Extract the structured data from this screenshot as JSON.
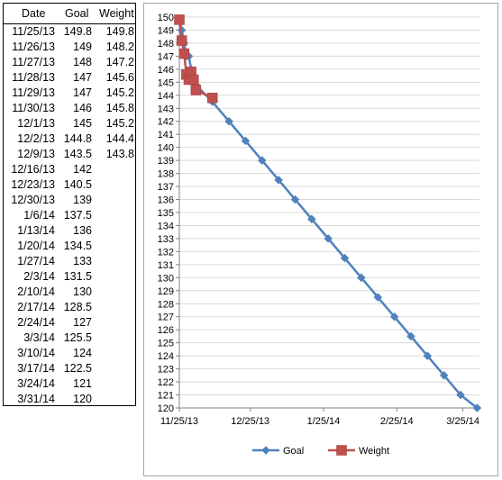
{
  "table": {
    "headers": {
      "date": "Date",
      "goal": "Goal",
      "weight": "Weight"
    },
    "rows": [
      {
        "date": "11/25/13",
        "goal": "149.8",
        "weight": "149.8"
      },
      {
        "date": "11/26/13",
        "goal": "149",
        "weight": "148.2"
      },
      {
        "date": "11/27/13",
        "goal": "148",
        "weight": "147.2"
      },
      {
        "date": "11/28/13",
        "goal": "147",
        "weight": "145.6"
      },
      {
        "date": "11/29/13",
        "goal": "147",
        "weight": "145.2"
      },
      {
        "date": "11/30/13",
        "goal": "146",
        "weight": "145.8"
      },
      {
        "date": "12/1/13",
        "goal": "145",
        "weight": "145.2"
      },
      {
        "date": "12/2/13",
        "goal": "144.8",
        "weight": "144.4"
      },
      {
        "date": "12/9/13",
        "goal": "143.5",
        "weight": "143.8"
      },
      {
        "date": "12/16/13",
        "goal": "142",
        "weight": ""
      },
      {
        "date": "12/23/13",
        "goal": "140.5",
        "weight": ""
      },
      {
        "date": "12/30/13",
        "goal": "139",
        "weight": ""
      },
      {
        "date": "1/6/14",
        "goal": "137.5",
        "weight": ""
      },
      {
        "date": "1/13/14",
        "goal": "136",
        "weight": ""
      },
      {
        "date": "1/20/14",
        "goal": "134.5",
        "weight": ""
      },
      {
        "date": "1/27/14",
        "goal": "133",
        "weight": ""
      },
      {
        "date": "2/3/14",
        "goal": "131.5",
        "weight": ""
      },
      {
        "date": "2/10/14",
        "goal": "130",
        "weight": ""
      },
      {
        "date": "2/17/14",
        "goal": "128.5",
        "weight": ""
      },
      {
        "date": "2/24/14",
        "goal": "127",
        "weight": ""
      },
      {
        "date": "3/3/14",
        "goal": "125.5",
        "weight": ""
      },
      {
        "date": "3/10/14",
        "goal": "124",
        "weight": ""
      },
      {
        "date": "3/17/14",
        "goal": "122.5",
        "weight": ""
      },
      {
        "date": "3/24/14",
        "goal": "121",
        "weight": ""
      },
      {
        "date": "3/31/14",
        "goal": "120",
        "weight": ""
      }
    ]
  },
  "chart_data": {
    "type": "line",
    "title": "",
    "xlabel": "",
    "ylabel": "",
    "ylim": [
      120,
      150
    ],
    "xlim": [
      "2013-11-25",
      "2014-04-01"
    ],
    "x_ticks": [
      "11/25/13",
      "12/25/13",
      "1/25/14",
      "2/25/14",
      "3/25/14"
    ],
    "y_ticks": [
      "120",
      "121",
      "122",
      "123",
      "124",
      "125",
      "126",
      "127",
      "128",
      "129",
      "130",
      "131",
      "132",
      "133",
      "134",
      "135",
      "136",
      "137",
      "138",
      "139",
      "140",
      "141",
      "142",
      "143",
      "144",
      "145",
      "146",
      "147",
      "148",
      "149",
      "150"
    ],
    "grid": "horizontal",
    "legend": "bottom",
    "series": [
      {
        "name": "Goal",
        "color": "#4f81bd",
        "marker": "diamond",
        "points": [
          [
            "2013-11-25",
            149.8
          ],
          [
            "2013-11-26",
            149
          ],
          [
            "2013-11-27",
            148
          ],
          [
            "2013-11-28",
            147
          ],
          [
            "2013-11-29",
            147
          ],
          [
            "2013-11-30",
            146
          ],
          [
            "2013-12-01",
            145
          ],
          [
            "2013-12-02",
            144.8
          ],
          [
            "2013-12-09",
            143.5
          ],
          [
            "2013-12-16",
            142
          ],
          [
            "2013-12-23",
            140.5
          ],
          [
            "2013-12-30",
            139
          ],
          [
            "2014-01-06",
            137.5
          ],
          [
            "2014-01-13",
            136
          ],
          [
            "2014-01-20",
            134.5
          ],
          [
            "2014-01-27",
            133
          ],
          [
            "2014-02-03",
            131.5
          ],
          [
            "2014-02-10",
            130
          ],
          [
            "2014-02-17",
            128.5
          ],
          [
            "2014-02-24",
            127
          ],
          [
            "2014-03-03",
            125.5
          ],
          [
            "2014-03-10",
            124
          ],
          [
            "2014-03-17",
            122.5
          ],
          [
            "2014-03-24",
            121
          ],
          [
            "2014-03-31",
            120
          ]
        ]
      },
      {
        "name": "Weight",
        "color": "#c0504d",
        "marker": "square",
        "points": [
          [
            "2013-11-25",
            149.8
          ],
          [
            "2013-11-26",
            148.2
          ],
          [
            "2013-11-27",
            147.2
          ],
          [
            "2013-11-28",
            145.6
          ],
          [
            "2013-11-29",
            145.2
          ],
          [
            "2013-11-30",
            145.8
          ],
          [
            "2013-12-01",
            145.2
          ],
          [
            "2013-12-02",
            144.4
          ],
          [
            "2013-12-09",
            143.8
          ]
        ]
      }
    ]
  }
}
